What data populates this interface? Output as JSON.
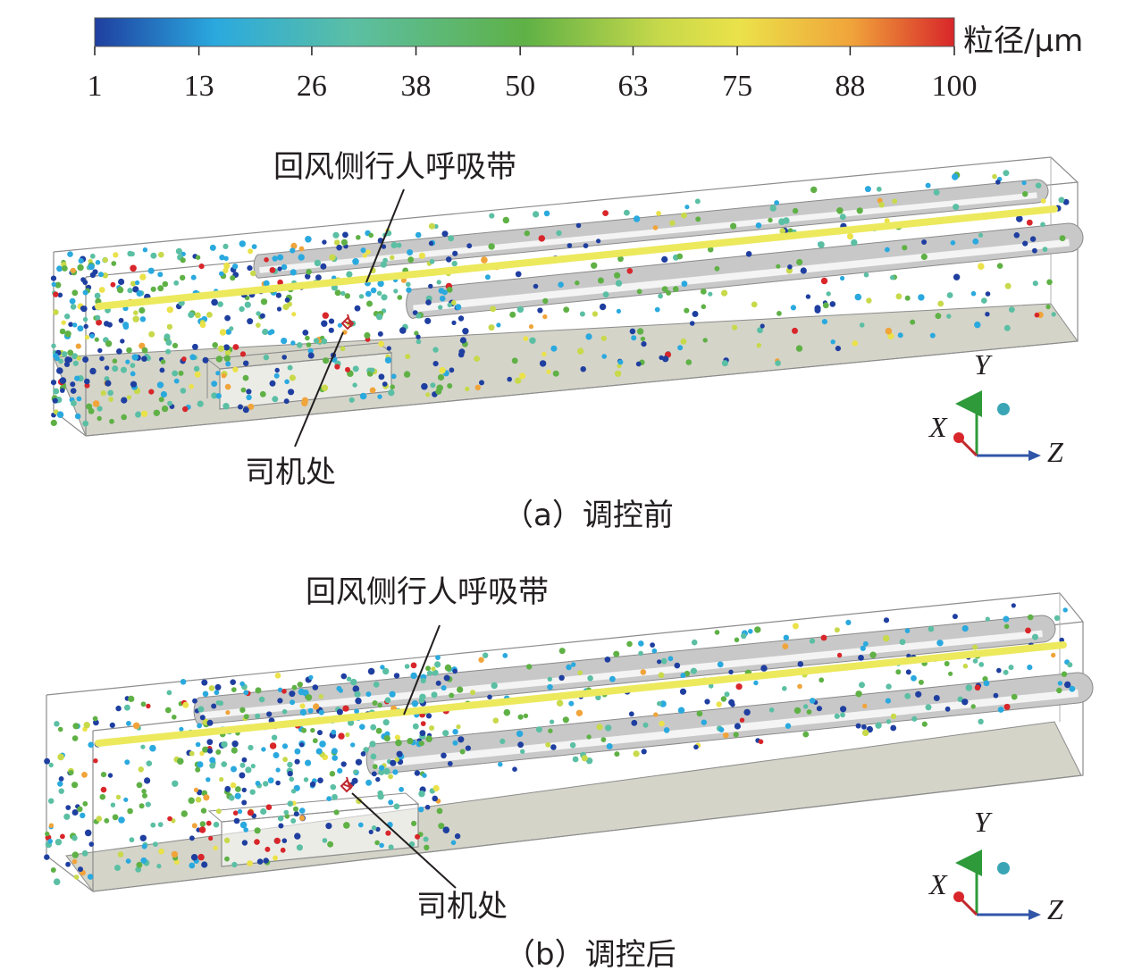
{
  "colorbar": {
    "unit": "粒径/μm",
    "ticks": [
      "1",
      "13",
      "26",
      "38",
      "50",
      "63",
      "75",
      "88",
      "100"
    ],
    "min": 1,
    "max": 100,
    "colors": [
      "#1f3fa0",
      "#2aa9de",
      "#5bbfa4",
      "#5fb146",
      "#c8d94a",
      "#ebe24a",
      "#f0a43a",
      "#d8262a"
    ]
  },
  "panels": [
    {
      "id": "a",
      "caption": "（a）调控前",
      "breathing_zone_label": "回风侧行人呼吸带",
      "driver_label": "司机处",
      "breathing_zone_color": "#ece95d",
      "axes": {
        "y": "Y",
        "x": "X",
        "z": "Z"
      }
    },
    {
      "id": "b",
      "caption": "（b）调控后",
      "breathing_zone_label": "回风侧行人呼吸带",
      "driver_label": "司机处",
      "breathing_zone_color": "#ece95d",
      "axes": {
        "y": "Y",
        "x": "X",
        "z": "Z"
      }
    }
  ]
}
